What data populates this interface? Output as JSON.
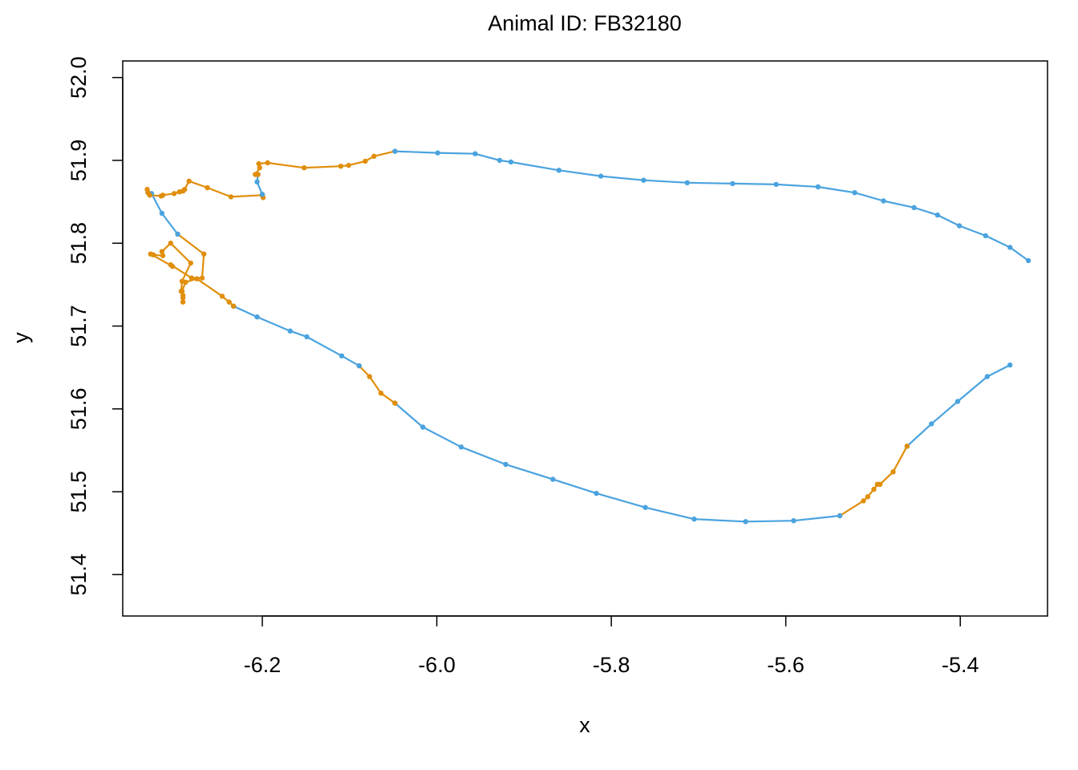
{
  "chart_data": {
    "type": "line",
    "title": "Animal ID: FB32180",
    "xlabel": "x",
    "ylabel": "y",
    "xlim": [
      -6.36,
      -5.3
    ],
    "ylim": [
      51.35,
      52.02
    ],
    "xticks": [
      -6.2,
      -6.0,
      -5.8,
      -5.6,
      -5.4
    ],
    "yticks": [
      51.4,
      51.5,
      51.6,
      51.7,
      51.8,
      51.9,
      52.0
    ],
    "xtick_labels": [
      "-6.2",
      "-6.0",
      "-5.8",
      "-5.6",
      "-5.4"
    ],
    "ytick_labels": [
      "51.4",
      "51.5",
      "51.6",
      "51.7",
      "51.8",
      "51.9",
      "52.0"
    ],
    "legend": "none",
    "grid": false,
    "colors": {
      "blue": "#4aa3df",
      "orange": "#e08e0b"
    },
    "segments": [
      {
        "color": "blue",
        "points": [
          [
            -5.343,
            51.653
          ],
          [
            -5.369,
            51.639
          ],
          [
            -5.403,
            51.609
          ],
          [
            -5.433,
            51.582
          ],
          [
            -5.461,
            51.555
          ]
        ]
      },
      {
        "color": "orange",
        "points": [
          [
            -5.461,
            51.555
          ],
          [
            -5.477,
            51.524
          ],
          [
            -5.492,
            51.509
          ],
          [
            -5.495,
            51.509
          ],
          [
            -5.499,
            51.503
          ],
          [
            -5.506,
            51.494
          ],
          [
            -5.511,
            51.489
          ],
          [
            -5.538,
            51.471
          ]
        ]
      },
      {
        "color": "blue",
        "points": [
          [
            -5.538,
            51.471
          ],
          [
            -5.591,
            51.465
          ],
          [
            -5.646,
            51.464
          ],
          [
            -5.705,
            51.467
          ],
          [
            -5.761,
            51.481
          ],
          [
            -5.817,
            51.498
          ],
          [
            -5.867,
            51.515
          ],
          [
            -5.921,
            51.533
          ],
          [
            -5.972,
            51.554
          ],
          [
            -6.016,
            51.578
          ],
          [
            -6.048,
            51.607
          ]
        ]
      },
      {
        "color": "orange",
        "points": [
          [
            -6.048,
            51.607
          ],
          [
            -6.064,
            51.619
          ],
          [
            -6.077,
            51.639
          ],
          [
            -6.089,
            51.652
          ]
        ]
      },
      {
        "color": "blue",
        "points": [
          [
            -6.089,
            51.652
          ],
          [
            -6.109,
            51.664
          ],
          [
            -6.149,
            51.687
          ],
          [
            -6.168,
            51.694
          ],
          [
            -6.206,
            51.711
          ],
          [
            -6.233,
            51.724
          ]
        ]
      },
      {
        "color": "orange",
        "points": [
          [
            -6.233,
            51.724
          ],
          [
            -6.238,
            51.729
          ],
          [
            -6.246,
            51.736
          ],
          [
            -6.275,
            51.757
          ],
          [
            -6.288,
            51.753
          ],
          [
            -6.292,
            51.742
          ],
          [
            -6.291,
            51.729
          ],
          [
            -6.291,
            51.734
          ],
          [
            -6.291,
            51.737
          ],
          [
            -6.293,
            51.742
          ],
          [
            -6.292,
            51.754
          ],
          [
            -6.282,
            51.776
          ],
          [
            -6.305,
            51.8
          ],
          [
            -6.315,
            51.79
          ],
          [
            -6.314,
            51.785
          ],
          [
            -6.325,
            51.786
          ],
          [
            -6.328,
            51.787
          ],
          [
            -6.303,
            51.772
          ],
          [
            -6.305,
            51.774
          ],
          [
            -6.281,
            51.758
          ],
          [
            -6.269,
            51.758
          ],
          [
            -6.267,
            51.787
          ],
          [
            -6.297,
            51.811
          ]
        ]
      },
      {
        "color": "blue",
        "points": [
          [
            -6.297,
            51.811
          ],
          [
            -6.315,
            51.836
          ],
          [
            -6.327,
            51.86
          ],
          [
            -6.331,
            51.861
          ]
        ]
      },
      {
        "color": "orange",
        "points": [
          [
            -6.331,
            51.861
          ],
          [
            -6.332,
            51.865
          ],
          [
            -6.329,
            51.858
          ],
          [
            -6.316,
            51.857
          ],
          [
            -6.314,
            51.858
          ],
          [
            -6.301,
            51.86
          ],
          [
            -6.295,
            51.862
          ],
          [
            -6.291,
            51.863
          ],
          [
            -6.289,
            51.865
          ],
          [
            -6.284,
            51.875
          ],
          [
            -6.263,
            51.867
          ],
          [
            -6.236,
            51.856
          ],
          [
            -6.2,
            51.858
          ],
          [
            -6.199,
            51.855
          ],
          [
            -6.2,
            51.859
          ]
        ]
      },
      {
        "color": "blue",
        "points": [
          [
            -6.2,
            51.859
          ],
          [
            -6.206,
            51.874
          ],
          [
            -6.205,
            51.883
          ]
        ]
      },
      {
        "color": "orange",
        "points": [
          [
            -6.205,
            51.883
          ],
          [
            -6.208,
            51.883
          ],
          [
            -6.203,
            51.891
          ],
          [
            -6.204,
            51.896
          ],
          [
            -6.194,
            51.897
          ],
          [
            -6.152,
            51.891
          ],
          [
            -6.11,
            51.893
          ],
          [
            -6.101,
            51.894
          ],
          [
            -6.082,
            51.899
          ],
          [
            -6.072,
            51.905
          ],
          [
            -6.048,
            51.911
          ]
        ]
      },
      {
        "color": "blue",
        "points": [
          [
            -6.048,
            51.911
          ],
          [
            -5.999,
            51.909
          ],
          [
            -5.956,
            51.908
          ],
          [
            -5.928,
            51.9
          ],
          [
            -5.915,
            51.898
          ],
          [
            -5.86,
            51.888
          ],
          [
            -5.812,
            51.881
          ],
          [
            -5.763,
            51.876
          ],
          [
            -5.713,
            51.873
          ],
          [
            -5.661,
            51.872
          ],
          [
            -5.611,
            51.871
          ],
          [
            -5.563,
            51.868
          ],
          [
            -5.521,
            51.861
          ],
          [
            -5.488,
            51.851
          ],
          [
            -5.453,
            51.843
          ],
          [
            -5.426,
            51.834
          ],
          [
            -5.401,
            51.821
          ],
          [
            -5.371,
            51.809
          ],
          [
            -5.343,
            51.795
          ],
          [
            -5.322,
            51.779
          ]
        ]
      }
    ]
  }
}
